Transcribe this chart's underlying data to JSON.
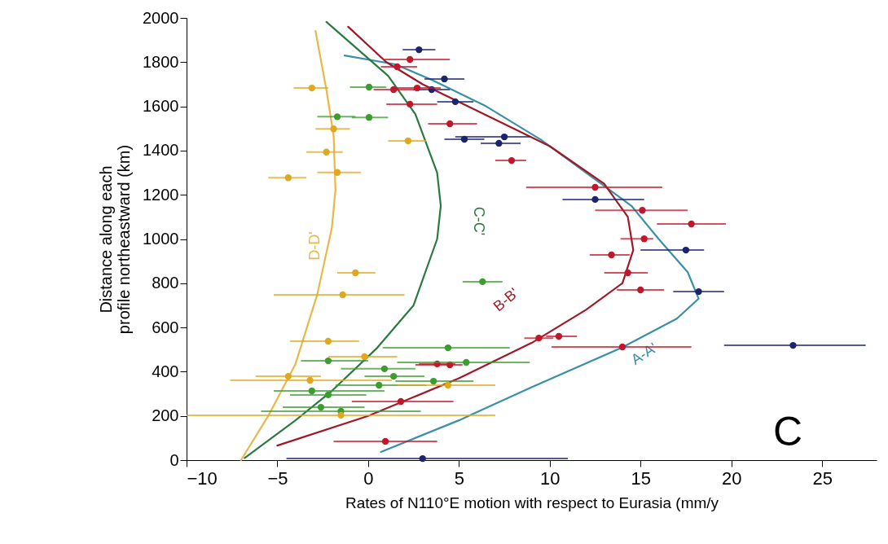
{
  "chart_data": {
    "type": "scatter",
    "xlabel": "Rates of N110°E motion with respect to Eurasia (mm/y",
    "ylabel": "Distance along each\nprofile northeastward (km)",
    "xlim": [
      -10,
      28
    ],
    "xticks": [
      -10,
      -5,
      0,
      5,
      10,
      15,
      20,
      25
    ],
    "ylim": [
      0,
      2000
    ],
    "yticks": [
      0,
      200,
      400,
      600,
      800,
      1000,
      1200,
      1400,
      1600,
      1800,
      2000
    ],
    "grid": false,
    "marker": "circle",
    "line_style": "solid",
    "annotations": [
      "C"
    ],
    "series": [
      {
        "color": "#1c2470",
        "x": [
          3.0,
          23.4,
          18.2,
          17.5,
          12.5,
          7.5,
          5.3,
          7.2,
          2.8,
          4.2,
          4.8,
          3.5
        ],
        "values": [
          7,
          519,
          762,
          950,
          1179,
          1462,
          1451,
          1433,
          1856,
          1724,
          1621,
          1676
        ],
        "xerrors": [
          [
            -4.5,
            11
          ],
          [
            19.6,
            27.4
          ],
          [
            16.8,
            19.6
          ],
          [
            15,
            18.5
          ],
          [
            10.7,
            15.2
          ],
          [
            4.8,
            8.9
          ],
          [
            4.2,
            6.4
          ],
          [
            6.2,
            8.4
          ],
          [
            1.9,
            3.7
          ],
          [
            3.1,
            5.3
          ],
          [
            3.8,
            5.8
          ],
          [
            2.5,
            4.5
          ]
        ]
      },
      {
        "color": "#c0182a",
        "x": [
          0.95,
          14.0,
          10.5,
          9.4,
          15.0,
          14.3,
          13.4,
          12.5,
          15.1,
          17.8,
          15.2,
          7.9,
          1.6,
          2.3,
          1.4,
          2.7,
          2.3,
          4.5,
          1.8,
          4.5,
          3.8
        ],
        "values": [
          85,
          512,
          560,
          552,
          770,
          847,
          928,
          1234,
          1130,
          1068,
          1001,
          1355,
          1779,
          1812,
          1676,
          1683,
          1610,
          1521,
          265,
          431,
          435
        ],
        "xerrors": [
          [
            -1.9,
            3.8
          ],
          [
            10.1,
            17.8
          ],
          [
            9.8,
            11.5
          ],
          [
            8.6,
            10.2
          ],
          [
            13.7,
            16.3
          ],
          [
            13,
            15.4
          ],
          [
            12.2,
            14.4
          ],
          [
            8.7,
            16.2
          ],
          [
            12.5,
            17.6
          ],
          [
            15.9,
            19.7
          ],
          [
            13.9,
            15.7
          ],
          [
            7.0,
            8.7
          ],
          [
            0.7,
            2.7
          ],
          [
            0.9,
            4.5
          ],
          [
            0.3,
            2.6
          ],
          [
            1.5,
            4.0
          ],
          [
            1,
            3.8
          ],
          [
            3.3,
            6
          ],
          [
            -0.9,
            4.7
          ],
          [
            2.6,
            5.2
          ],
          [
            2.8,
            4.8
          ]
        ]
      },
      {
        "color": "#3c9c30",
        "x": [
          -2.6,
          -1.5,
          -3.1,
          -2.2,
          4.4,
          5.4,
          -2.2,
          0.9,
          1.4,
          0.6,
          3.6,
          6.3,
          0.05,
          -1.7,
          0.05
        ],
        "values": [
          239,
          221,
          313,
          295,
          508,
          442,
          449,
          413,
          379,
          339,
          357,
          807,
          1550,
          1553,
          1687
        ],
        "xerrors": [
          [
            -4.7,
            -0.2
          ],
          [
            -5.9,
            2.9
          ],
          [
            -5.2,
            0.9
          ],
          [
            -4.3,
            -0.1
          ],
          [
            0.8,
            7.8
          ],
          [
            1.6,
            8.9
          ],
          [
            -3.7,
            0
          ],
          [
            -1.5,
            2.6
          ],
          [
            -0.2,
            3.1
          ],
          [
            -1.8,
            3.2
          ],
          [
            1.5,
            5.8
          ],
          [
            5.2,
            7.4
          ],
          [
            -0.9,
            1.1
          ],
          [
            -2.8,
            -0.7
          ],
          [
            -1,
            1
          ]
        ]
      },
      {
        "color": "#e0a820",
        "x": [
          -3.1,
          -1.9,
          -2.3,
          -1.7,
          -4.4,
          2.2,
          -0.7,
          -1.4,
          -2.2,
          -3.2,
          -4.4,
          -0.2,
          4.4,
          -1.5
        ],
        "values": [
          1683,
          1498,
          1393,
          1301,
          1277,
          1444,
          847,
          748,
          538,
          361,
          379,
          468,
          339,
          203
        ],
        "xerrors": [
          [
            -4.1,
            -2.2
          ],
          [
            -2.9,
            -1.0
          ],
          [
            -3.4,
            -1.4
          ],
          [
            -2.8,
            -0.4
          ],
          [
            -5.5,
            -3.4
          ],
          [
            1.1,
            3.2
          ],
          [
            -1.7,
            0.4
          ],
          [
            -5.2,
            2.0
          ],
          [
            -4.3,
            -0.5
          ],
          [
            -7.6,
            1.3
          ],
          [
            -6.2,
            -2.6
          ],
          [
            -2.2,
            1.6
          ],
          [
            1.6,
            7.0
          ],
          [
            -10,
            7
          ]
        ]
      },
      {
        "type": "line",
        "marker": "none",
        "name": "A-A'",
        "color": "#3a90a8",
        "x": [
          0.7,
          5,
          9,
          14,
          17,
          18.2,
          17.6,
          16,
          14.5,
          12,
          9.5,
          6.5,
          3.5,
          1.5,
          -1.3
        ],
        "values": [
          37,
          180,
          330,
          510,
          640,
          730,
          850,
          1000,
          1150,
          1300,
          1450,
          1600,
          1720,
          1790,
          1830
        ]
      },
      {
        "type": "line",
        "marker": "none",
        "name": "B-B'",
        "color": "#a01828",
        "x": [
          -5,
          0,
          5,
          9,
          12,
          14,
          14.6,
          14.3,
          13,
          10,
          6,
          3,
          1,
          -1.1
        ],
        "values": [
          66,
          200,
          370,
          530,
          680,
          800,
          950,
          1100,
          1250,
          1420,
          1580,
          1700,
          1800,
          1960
        ]
      },
      {
        "type": "line",
        "marker": "none",
        "name": "C-C'",
        "color": "#2a7a40",
        "x": [
          -6.8,
          -4,
          -2,
          0.5,
          2.5,
          3.8,
          4,
          3.8,
          2.6,
          1.1,
          -2.3
        ],
        "values": [
          10,
          180,
          313,
          508,
          700,
          1000,
          1150,
          1300,
          1565,
          1738,
          1982
        ]
      },
      {
        "type": "line",
        "marker": "none",
        "name": "D-D'",
        "color": "#e8b848",
        "x": [
          -7,
          -5.5,
          -4,
          -2.8,
          -2,
          -1.8,
          -1.9,
          -2.3,
          -2.9
        ],
        "values": [
          0,
          200,
          435,
          750,
          1050,
          1222,
          1466,
          1676,
          1941
        ]
      }
    ]
  }
}
